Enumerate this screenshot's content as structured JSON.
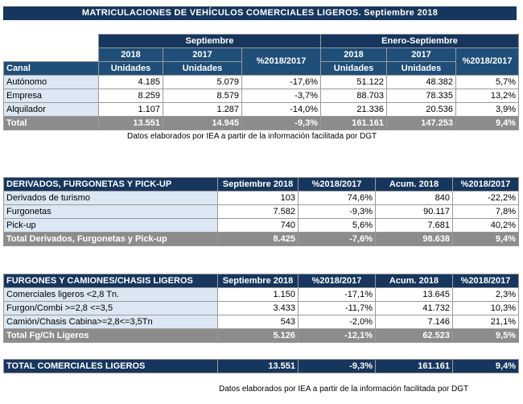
{
  "title": "MATRICULACIONES DE VEHÍCULOS COMERCIALES LIGEROS. Septiembre 2018",
  "t1": {
    "group_sep": "Septiembre",
    "group_ytd": "Enero-Septiembre",
    "y2018": "2018",
    "y2017": "2017",
    "units": "Unidades",
    "pct": "%2018/2017",
    "canal": "Canal",
    "rows": [
      {
        "label": "Autónomo",
        "s18": "4.185",
        "s17": "5.079",
        "sp": "-17,6%",
        "a18": "51.122",
        "a17": "48.382",
        "ap": "5,7%"
      },
      {
        "label": "Empresa",
        "s18": "8.259",
        "s17": "8.579",
        "sp": "-3,7%",
        "a18": "88.703",
        "a17": "78.335",
        "ap": "13,2%"
      },
      {
        "label": "Alquilador",
        "s18": "1.107",
        "s17": "1.287",
        "sp": "-14,0%",
        "a18": "21.336",
        "a17": "20.536",
        "ap": "3,9%"
      }
    ],
    "total": {
      "label": "Total",
      "s18": "13.551",
      "s17": "14.945",
      "sp": "-9,3%",
      "a18": "161.161",
      "a17": "147.253",
      "ap": "9,4%"
    },
    "note": "Datos elaborados por IEA a partir de la información facilitada por DGT"
  },
  "t2": {
    "h_label": "DERIVADOS, FURGONETAS Y PICK-UP",
    "h_sep": "Septiembre 2018",
    "h_pct1": "%2018/2017",
    "h_acum": "Acum. 2018",
    "h_pct2": "%2018/2017",
    "rows": [
      {
        "label": "Derivados de turismo",
        "v": "103",
        "p1": "74,6%",
        "a": "840",
        "p2": "-22,2%"
      },
      {
        "label": "Furgonetas",
        "v": "7.582",
        "p1": "-9,3%",
        "a": "90.117",
        "p2": "7,8%"
      },
      {
        "label": "Pick-up",
        "v": "740",
        "p1": "5,6%",
        "a": "7.681",
        "p2": "40,2%"
      }
    ],
    "total": {
      "label": "Total Derivados, Furgonetas y Pick-up",
      "v": "8.425",
      "p1": "-7,6%",
      "a": "98.638",
      "p2": "9,4%"
    }
  },
  "t3": {
    "h_label": "FURGONES Y CAMIONES/CHASIS LIGEROS",
    "h_sep": "Septiembre 2018",
    "h_pct1": "%2018/2017",
    "h_acum": "Acum. 2018",
    "h_pct2": "%2018/2017",
    "rows": [
      {
        "label": "Comerciales ligeros <2,8 Tn.",
        "v": "1.150",
        "p1": "-17,1%",
        "a": "13.645",
        "p2": "2,3%"
      },
      {
        "label": "Furgon/Combi >=2,8 <=3,5",
        "v": "3.433",
        "p1": "-11,7%",
        "a": "41.732",
        "p2": "10,3%"
      },
      {
        "label": "Camión/Chasis Cabina>=2,8<=3,5Tn",
        "v": "543",
        "p1": "-2,0%",
        "a": "7.146",
        "p2": "21,1%"
      }
    ],
    "total": {
      "label": "Total Fg/Ch Ligeros",
      "v": "5.126",
      "p1": "-12,1%",
      "a": "62.523",
      "p2": "9,5%"
    }
  },
  "grand": {
    "label": "TOTAL COMERCIALES LIGEROS",
    "v": "13.551",
    "p1": "-9,3%",
    "a": "161.161",
    "p2": "9,4%"
  },
  "note2": "Datos elaborados por IEA a partir de la información facilitada por DGT"
}
